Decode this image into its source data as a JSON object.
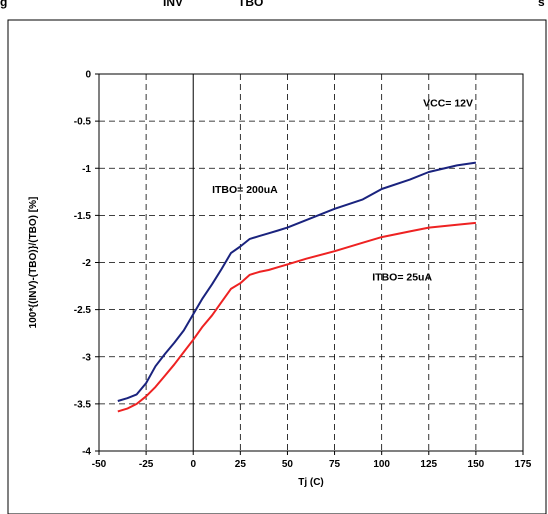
{
  "header": {
    "left_fragment": "g",
    "mid_fragment_1": "INV",
    "mid_fragment_2": "TBO",
    "right_fragment": "s"
  },
  "colors": {
    "series_itbo_200": "#1a237e",
    "series_itbo_25": "#ee2222",
    "axis": "#000000",
    "grid": "#000000",
    "background": "#ffffff"
  },
  "chart_data": {
    "type": "line",
    "xlabel": "Tj (C)",
    "ylabel": "100*{(INV)-(TBO)}/(TBO)   [%]",
    "xlim": [
      -50,
      175
    ],
    "ylim": [
      -4,
      0
    ],
    "xticks": [
      -50,
      -25,
      0,
      25,
      50,
      75,
      100,
      125,
      150,
      175
    ],
    "yticks": [
      0,
      -0.5,
      -1,
      -1.5,
      -2,
      -2.5,
      -3,
      -3.5,
      -4
    ],
    "grid": true,
    "grid_style": "dashed",
    "legend": "none",
    "annotations": [
      {
        "text": "VCC= 12V",
        "x": 122,
        "y": -0.3
      },
      {
        "text": "ITBO= 200uA",
        "x": 10,
        "y": -1.22
      },
      {
        "text": "ITBO= 25uA",
        "x": 95,
        "y": -2.15
      }
    ],
    "series": [
      {
        "color": "#1a237e",
        "x": [
          -40,
          -35,
          -30,
          -25,
          -20,
          -15,
          -10,
          -5,
          0,
          5,
          10,
          15,
          20,
          25,
          30,
          35,
          40,
          45,
          50,
          60,
          75,
          90,
          100,
          115,
          125,
          140,
          150
        ],
        "y": [
          -3.47,
          -3.44,
          -3.4,
          -3.28,
          -3.1,
          -2.97,
          -2.85,
          -2.72,
          -2.55,
          -2.38,
          -2.23,
          -2.07,
          -1.9,
          -1.83,
          -1.75,
          -1.72,
          -1.69,
          -1.66,
          -1.63,
          -1.55,
          -1.43,
          -1.33,
          -1.22,
          -1.12,
          -1.04,
          -0.97,
          -0.94
        ]
      },
      {
        "color": "#ee2222",
        "x": [
          -40,
          -35,
          -30,
          -25,
          -20,
          -15,
          -10,
          -5,
          0,
          5,
          10,
          15,
          20,
          25,
          30,
          35,
          40,
          45,
          50,
          60,
          75,
          90,
          100,
          115,
          125,
          140,
          150
        ],
        "y": [
          -3.58,
          -3.55,
          -3.5,
          -3.42,
          -3.32,
          -3.2,
          -3.08,
          -2.95,
          -2.82,
          -2.68,
          -2.56,
          -2.42,
          -2.28,
          -2.22,
          -2.13,
          -2.1,
          -2.08,
          -2.05,
          -2.02,
          -1.96,
          -1.88,
          -1.79,
          -1.73,
          -1.67,
          -1.63,
          -1.6,
          -1.58
        ]
      }
    ]
  }
}
